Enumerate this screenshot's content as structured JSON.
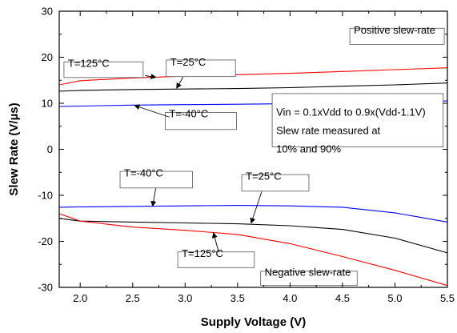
{
  "chart_data": {
    "type": "line",
    "xlabel": "Supply Voltage (V)",
    "ylabel": "Slew Rate (V/µs)",
    "xlim": [
      1.8,
      5.5
    ],
    "ylim": [
      -30,
      30
    ],
    "xticks": [
      2.0,
      2.5,
      3.0,
      3.5,
      4.0,
      4.5,
      5.0,
      5.5
    ],
    "xtick_labels": [
      "2.0",
      "2.5",
      "3.0",
      "3.5",
      "4.0",
      "4.5",
      "5.0",
      "5.5"
    ],
    "yticks": [
      -30,
      -20,
      -10,
      0,
      10,
      20,
      30
    ],
    "ytick_labels": [
      "-30",
      "-20",
      "-10",
      "0",
      "10",
      "20",
      "30"
    ],
    "grid": false,
    "series": [
      {
        "color": "#ff0000",
        "x": [
          1.8,
          2.0,
          2.5,
          3.0,
          3.5,
          4.0,
          4.5,
          5.0,
          5.5
        ],
        "y": [
          14.0,
          14.9,
          15.5,
          15.9,
          16.2,
          16.5,
          16.9,
          17.3,
          17.7
        ]
      },
      {
        "color": "#000000",
        "x": [
          1.8,
          2.0,
          2.5,
          3.0,
          3.5,
          4.0,
          4.5,
          5.0,
          5.5
        ],
        "y": [
          12.6,
          12.8,
          13.0,
          13.1,
          13.2,
          13.4,
          13.7,
          14.0,
          14.4
        ]
      },
      {
        "color": "#0000ff",
        "x": [
          1.8,
          2.0,
          2.5,
          3.0,
          3.5,
          4.0,
          4.5,
          5.0,
          5.5
        ],
        "y": [
          9.3,
          9.4,
          9.6,
          9.7,
          9.8,
          9.9,
          10.0,
          10.2,
          10.5
        ]
      },
      {
        "color": "#0000ff",
        "x": [
          1.8,
          2.0,
          2.5,
          3.0,
          3.5,
          4.0,
          4.5,
          5.0,
          5.5
        ],
        "y": [
          -12.6,
          -12.5,
          -12.4,
          -12.3,
          -12.2,
          -12.3,
          -12.6,
          -13.8,
          -15.8
        ]
      },
      {
        "color": "#000000",
        "x": [
          1.8,
          2.0,
          2.5,
          3.0,
          3.5,
          4.0,
          4.5,
          5.0,
          5.5
        ],
        "y": [
          -15.0,
          -15.6,
          -15.8,
          -16.0,
          -16.2,
          -16.6,
          -17.4,
          -19.3,
          -22.5
        ]
      },
      {
        "color": "#ff0000",
        "x": [
          1.8,
          2.0,
          2.5,
          3.0,
          3.5,
          4.0,
          4.5,
          5.0,
          5.5
        ],
        "y": [
          -14.0,
          -15.6,
          -16.9,
          -17.6,
          -18.5,
          -20.5,
          -23.3,
          -26.3,
          -29.6
        ]
      }
    ],
    "annotations": [
      {
        "text": "T=125°C",
        "boxed": true,
        "box": [
          1.845,
          19.0,
          2.6,
          15.6
        ],
        "ty": 17.9,
        "arrow": [
          2.62,
          16.0,
          2.72,
          15.65
        ]
      },
      {
        "text": "T=25°C",
        "boxed": true,
        "box": [
          2.82,
          19.4,
          3.48,
          15.8
        ],
        "ty": 18.2,
        "arrow": [
          2.98,
          15.7,
          2.92,
          13.3
        ]
      },
      {
        "text": "T=-40°C",
        "boxed": true,
        "box": [
          2.81,
          8.0,
          3.49,
          4.3
        ],
        "ty": 7.0,
        "arrow": [
          2.85,
          7.0,
          2.52,
          9.5
        ]
      },
      {
        "text": "T=-40°C",
        "boxed": true,
        "box": [
          2.38,
          -4.8,
          3.07,
          -8.4
        ],
        "ty": -5.9,
        "arrow": [
          2.72,
          -8.5,
          2.69,
          -12.3
        ]
      },
      {
        "text": "T=25°C",
        "boxed": true,
        "box": [
          3.54,
          -5.5,
          4.18,
          -9.1
        ],
        "ty": -6.6,
        "arrow": [
          3.73,
          -9.2,
          3.63,
          -16.0
        ]
      },
      {
        "text": "T=125°C",
        "boxed": true,
        "box": [
          2.93,
          -22.3,
          3.66,
          -25.7
        ],
        "ty": -23.4,
        "arrow": [
          3.32,
          -22.3,
          3.27,
          -18.2
        ]
      },
      {
        "text": "Positive slew-rate",
        "boxed": true,
        "box": [
          4.57,
          26.3,
          5.47,
          22.8
        ],
        "ty": 25.1
      },
      {
        "text": "Negative slew-rate",
        "boxed": true,
        "box": [
          3.72,
          -26.5,
          4.64,
          -29.6
        ],
        "ty": -27.5
      },
      {
        "text": [
          "Vin = 0.1xVdd to 0.9x(Vdd-1.1V)",
          "Slew rate measured at",
          "10% and 90%"
        ],
        "boxed": true,
        "box": [
          3.83,
          12.1,
          5.46,
          0.5
        ],
        "ty": 7.3,
        "line_step": 4.0
      }
    ]
  }
}
